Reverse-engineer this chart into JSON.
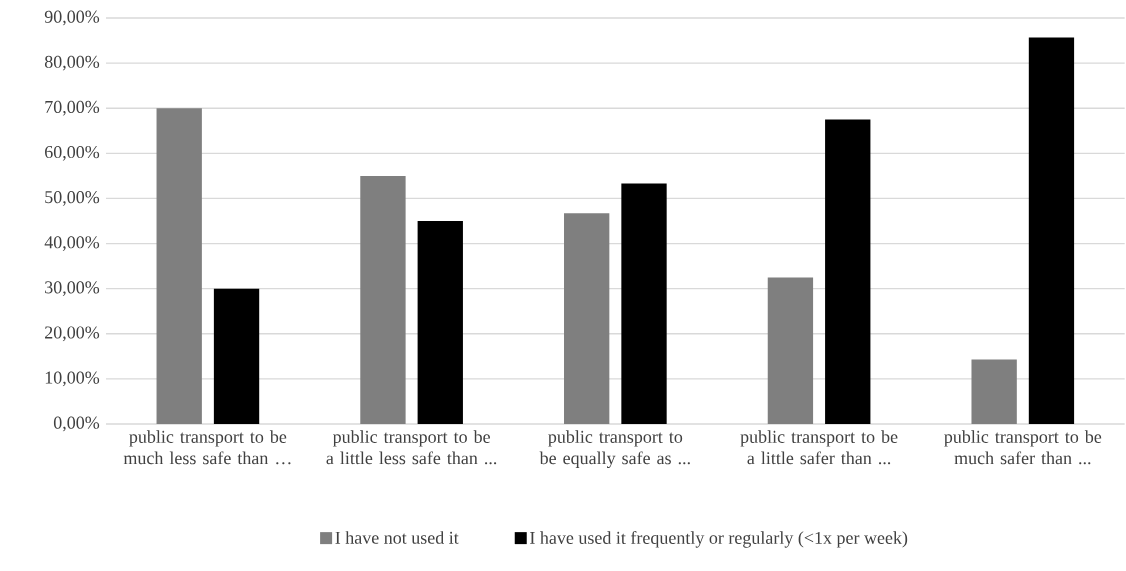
{
  "chart_data": {
    "type": "bar",
    "categories": [
      "public transport to be much less safe than …",
      "public transport to be a little less safe than ...",
      "public transport to be equally safe as ...",
      "public transport to be a little safer than ...",
      "public transport to be much safer than ..."
    ],
    "series": [
      {
        "name": "I have not used it",
        "color": "#7f7f7f",
        "values": [
          70,
          55,
          46.7,
          32.5,
          14.3
        ]
      },
      {
        "name": "I have used it frequently or regularly (<1x per week)",
        "color": "#000000",
        "values": [
          30,
          45,
          53.3,
          67.5,
          85.7
        ]
      }
    ],
    "ylim": [
      0,
      90
    ],
    "yticks": [
      {
        "value": 0,
        "label": "0,00%"
      },
      {
        "value": 10,
        "label": "10,00%"
      },
      {
        "value": 20,
        "label": "20,00%"
      },
      {
        "value": 30,
        "label": "30,00%"
      },
      {
        "value": 40,
        "label": "40,00%"
      },
      {
        "value": 50,
        "label": "50,00%"
      },
      {
        "value": 60,
        "label": "60,00%"
      },
      {
        "value": 70,
        "label": "70,00%"
      },
      {
        "value": 80,
        "label": "80,00%"
      },
      {
        "value": 90,
        "label": "90,00%"
      }
    ],
    "grid": "y",
    "legend": "bottom"
  }
}
